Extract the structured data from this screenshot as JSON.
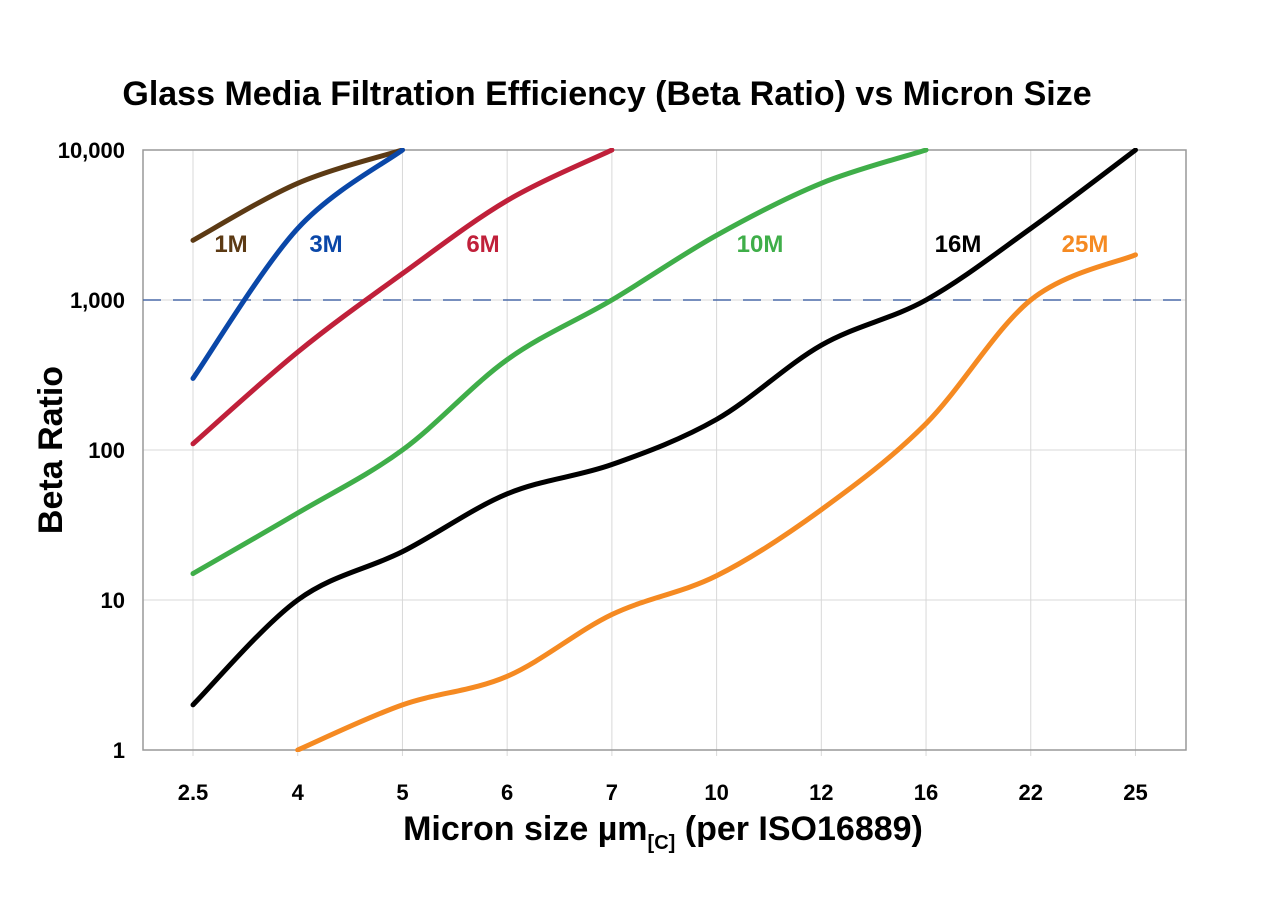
{
  "chart_data": {
    "type": "line",
    "title": "Glass Media Filtration Efficiency (Beta Ratio) vs Micron Size",
    "xlabel_main": "Micron size µm",
    "xlabel_sub": "[C]",
    "xlabel_tail": " (per ISO16889)",
    "ylabel": "Beta Ratio",
    "yscale": "log",
    "ylim": [
      1,
      10000
    ],
    "yticks": [
      1,
      10,
      100,
      1000,
      10000
    ],
    "ytick_labels": [
      "1",
      "10",
      "100",
      "1,000",
      "10,000"
    ],
    "categories": [
      "2.5",
      "4",
      "5",
      "6",
      "7",
      "10",
      "12",
      "16",
      "22",
      "25"
    ],
    "grid": true,
    "reference_line": {
      "value": 1000,
      "style": "dashed",
      "color": "#4a6aa8"
    },
    "series": [
      {
        "name": "1M",
        "color": "#5c3a14",
        "values": [
          2500,
          6000,
          10000,
          null,
          null,
          null,
          null,
          null,
          null,
          null
        ]
      },
      {
        "name": "3M",
        "color": "#0a47a8",
        "values": [
          300,
          3000,
          10000,
          null,
          null,
          null,
          null,
          null,
          null,
          null
        ]
      },
      {
        "name": "6M",
        "color": "#c0203a",
        "values": [
          110,
          450,
          1500,
          4600,
          10000,
          null,
          null,
          null,
          null,
          null
        ]
      },
      {
        "name": "10M",
        "color": "#3fae49",
        "values": [
          15,
          38,
          100,
          400,
          1000,
          2700,
          6000,
          10000,
          null,
          null
        ]
      },
      {
        "name": "16M",
        "color": "#000000",
        "values": [
          2,
          10,
          21,
          51,
          80,
          160,
          500,
          1000,
          3000,
          10000
        ]
      },
      {
        "name": "25M",
        "color": "#f58a22",
        "values": [
          null,
          1,
          2,
          3.1,
          8,
          14.5,
          40,
          150,
          1000,
          2000
        ]
      }
    ]
  }
}
